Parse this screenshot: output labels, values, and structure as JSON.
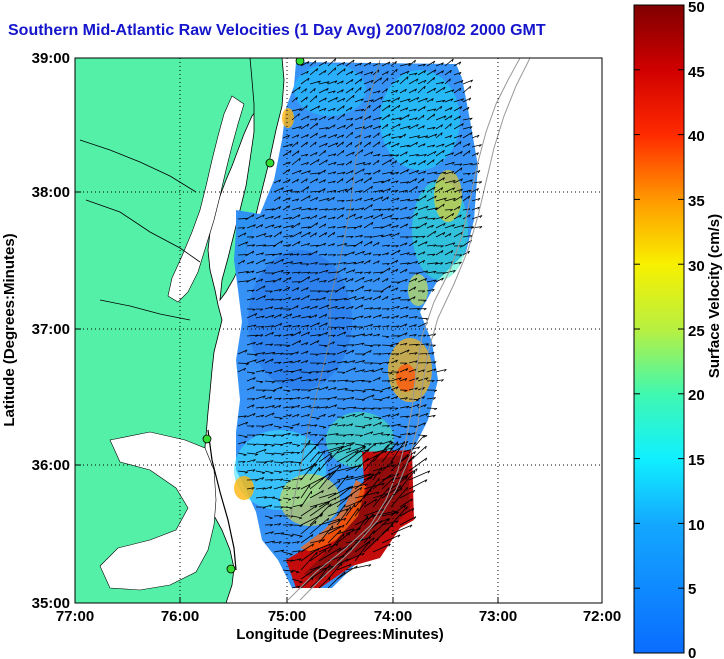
{
  "title": "Southern Mid-Atlantic Raw Velocities (1 Day Avg) 2007/08/02 2000 GMT",
  "colors": {
    "title": "#1515cc",
    "land": "#55f0a8",
    "station": "#33dd33",
    "vector": "#000000"
  },
  "map": {
    "x_axis": {
      "label": "Longitude (Degrees:Minutes)",
      "ticks": [
        "77:00",
        "76:00",
        "75:00",
        "74:00",
        "73:00",
        "72:00"
      ],
      "range_deg_west": [
        77,
        72
      ]
    },
    "y_axis": {
      "label": "Latitude (Degrees:Minutes)",
      "ticks": [
        "39:00",
        "38:00",
        "37:00",
        "36:00",
        "35:00"
      ],
      "range_deg_north": [
        35,
        39
      ]
    },
    "grid": "dotted"
  },
  "colorbar": {
    "label": "Surface Velocity (cm/s)",
    "ticks": [
      "50",
      "45",
      "40",
      "35",
      "30",
      "25",
      "20",
      "15",
      "10",
      "5",
      "0"
    ],
    "range": [
      0,
      50
    ],
    "colormap": "jet"
  }
}
